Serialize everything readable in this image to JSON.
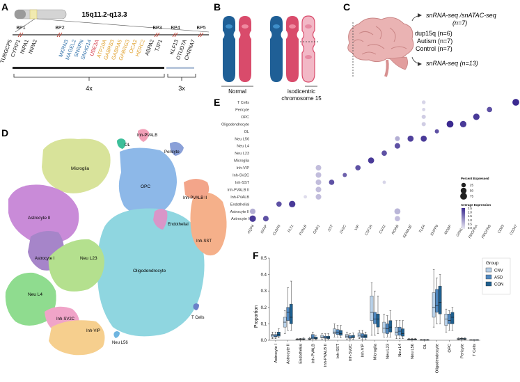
{
  "panels": {
    "a": "A",
    "b": "B",
    "c": "C",
    "d": "D",
    "e": "E",
    "f": "F"
  },
  "panel_a": {
    "title": "15q11.2-q13.3",
    "breakpoints": [
      "BP1",
      "BP2",
      "BP3",
      "BP4",
      "BP5"
    ],
    "genes_black_1": [
      "TUBGCP5",
      "CYFIP1",
      "NIPA1",
      "NIPA2"
    ],
    "genes_blue": [
      "MKRN3",
      "MAGEL2",
      "SNRPN",
      "SNHG14"
    ],
    "genes_red": [
      "UBE3A"
    ],
    "genes_orange": [
      "ATP10A",
      "GABRB3",
      "GABRA5",
      "GABRG3",
      "OCA2",
      "HERC2"
    ],
    "genes_black_2": [
      "ABPA2",
      "TJP1"
    ],
    "genes_black_3": [
      "KLF13",
      "OTUD7A",
      "CHRNA7"
    ],
    "copy_4x": "4x",
    "copy_3x": "3x",
    "colors": {
      "blue": "#2d6fa8",
      "red": "#d6394a",
      "orange": "#e0a12e",
      "gray": "#b9c7dc"
    }
  },
  "panel_b": {
    "normal": "Normal",
    "isodicentric_1": "isodicentric",
    "isodicentric_2": "chromosome 15",
    "colors": {
      "blue": "#1f5f96",
      "pink": "#d94b6b"
    }
  },
  "panel_c": {
    "top_label": "snRNA-seq /snATAC-seq",
    "top_n": "(n=7)",
    "groups": [
      "dup15q (n=6)",
      "Autism (n=7)",
      "Control (n=7)"
    ],
    "bottom_label": "snRNA-seq (n=13)"
  },
  "panel_d": {
    "clusters": [
      {
        "name": "OL",
        "color": "#3cbf9a"
      },
      {
        "name": "Inh-PVALB",
        "color": "#f2a0b8"
      },
      {
        "name": "Pericyte",
        "color": "#8aa0d8"
      },
      {
        "name": "Microglia",
        "color": "#d8e39a"
      },
      {
        "name": "OPC",
        "color": "#8db8e8"
      },
      {
        "name": "Inh-PVALB II",
        "color": "#f3a58a"
      },
      {
        "name": "Astrocyte II",
        "color": "#c98bd8"
      },
      {
        "name": "Endothelial",
        "color": "#d996c8"
      },
      {
        "name": "Inh-SST",
        "color": "#f5b08a"
      },
      {
        "name": "Astrocyte I",
        "color": "#a685c9"
      },
      {
        "name": "Neu L23",
        "color": "#b4e08e"
      },
      {
        "name": "Oligodendrocyte",
        "color": "#8fd6e0"
      },
      {
        "name": "Neu L4",
        "color": "#8fdc8f"
      },
      {
        "name": "T Cells",
        "color": "#6a80c8"
      },
      {
        "name": "Inh-SV2C",
        "color": "#f0a4c8"
      },
      {
        "name": "Inh-VIP",
        "color": "#f6cf8e"
      },
      {
        "name": "Neu L56",
        "color": "#6fb5e0"
      }
    ]
  },
  "chart_data": [
    {
      "type": "dotplot",
      "panel": "E",
      "title": "",
      "genes": [
        "AQP4",
        "GFAP",
        "CLDN5",
        "FLT1",
        "PVALB",
        "GAD1",
        "SST",
        "SV2C",
        "VIP",
        "CSF1R",
        "CUX2",
        "RORB",
        "SEMA3E",
        "TLE4",
        "ENPP6",
        "MOBP",
        "OPALIN",
        "PDGFRA",
        "PDGFRB",
        "CD83",
        "CD247"
      ],
      "cell_types": [
        "T Cells",
        "Pericyte",
        "OPC",
        "Oligodendrocyte",
        "OL",
        "Neu L56",
        "Neu L4",
        "Neu L23",
        "Microglia",
        "Inh-VIP",
        "Inh-SV2C",
        "Inh-SST",
        "Inh-PVALB II",
        "Inh-PVALB",
        "Endothelial",
        "Astrocyte II",
        "Astrocyte I"
      ],
      "dots": [
        {
          "cell": "T Cells",
          "gene": "CD247",
          "pct": 75,
          "expr": 2.5
        },
        {
          "cell": "T Cells",
          "gene": "TLE4",
          "pct": 15,
          "expr": 0.3
        },
        {
          "cell": "Pericyte",
          "gene": "PDGFRB",
          "pct": 40,
          "expr": 2.0
        },
        {
          "cell": "Pericyte",
          "gene": "TLE4",
          "pct": 10,
          "expr": 0.3
        },
        {
          "cell": "OPC",
          "gene": "PDGFRA",
          "pct": 65,
          "expr": 2.3
        },
        {
          "cell": "OPC",
          "gene": "TLE4",
          "pct": 20,
          "expr": 0.4
        },
        {
          "cell": "Oligodendrocyte",
          "gene": "MOBP",
          "pct": 75,
          "expr": 2.5
        },
        {
          "cell": "Oligodendrocyte",
          "gene": "OPALIN",
          "pct": 65,
          "expr": 2.3
        },
        {
          "cell": "Oligodendrocyte",
          "gene": "TLE4",
          "pct": 20,
          "expr": 0.4
        },
        {
          "cell": "OL",
          "gene": "ENPP6",
          "pct": 20,
          "expr": 2.0
        },
        {
          "cell": "Neu L56",
          "gene": "SEMA3E",
          "pct": 55,
          "expr": 2.2
        },
        {
          "cell": "Neu L56",
          "gene": "TLE4",
          "pct": 55,
          "expr": 2.3
        },
        {
          "cell": "Neu L56",
          "gene": "RORB",
          "pct": 30,
          "expr": 0.8
        },
        {
          "cell": "Neu L4",
          "gene": "RORB",
          "pct": 45,
          "expr": 2.0
        },
        {
          "cell": "Neu L23",
          "gene": "CUX2",
          "pct": 40,
          "expr": 2.0
        },
        {
          "cell": "Microglia",
          "gene": "CSF1R",
          "pct": 55,
          "expr": 2.3
        },
        {
          "cell": "Inh-VIP",
          "gene": "VIP",
          "pct": 40,
          "expr": 2.0
        },
        {
          "cell": "Inh-VIP",
          "gene": "GAD1",
          "pct": 45,
          "expr": 0.6
        },
        {
          "cell": "Inh-SV2C",
          "gene": "SV2C",
          "pct": 20,
          "expr": 1.8
        },
        {
          "cell": "Inh-SV2C",
          "gene": "GAD1",
          "pct": 45,
          "expr": 0.6
        },
        {
          "cell": "Inh-SST",
          "gene": "SST",
          "pct": 40,
          "expr": 2.0
        },
        {
          "cell": "Inh-SST",
          "gene": "GAD1",
          "pct": 45,
          "expr": 0.6
        },
        {
          "cell": "Inh-SST",
          "gene": "CUX2",
          "pct": 10,
          "expr": 0.3
        },
        {
          "cell": "Inh-PVALB II",
          "gene": "GAD1",
          "pct": 45,
          "expr": 0.6
        },
        {
          "cell": "Inh-PVALB",
          "gene": "PVALB",
          "pct": 10,
          "expr": 0.2
        },
        {
          "cell": "Inh-PVALB",
          "gene": "GAD1",
          "pct": 45,
          "expr": 0.6
        },
        {
          "cell": "Endothelial",
          "gene": "CLDN5",
          "pct": 40,
          "expr": 2.0
        },
        {
          "cell": "Endothelial",
          "gene": "FLT1",
          "pct": 65,
          "expr": 2.3
        },
        {
          "cell": "Astrocyte II",
          "gene": "AQP4",
          "pct": 45,
          "expr": 0.8
        },
        {
          "cell": "Astrocyte II",
          "gene": "RORB",
          "pct": 55,
          "expr": 0.7
        },
        {
          "cell": "Astrocyte I",
          "gene": "AQP4",
          "pct": 65,
          "expr": 2.3
        },
        {
          "cell": "Astrocyte I",
          "gene": "GFAP",
          "pct": 45,
          "expr": 2.0
        },
        {
          "cell": "Astrocyte I",
          "gene": "RORB",
          "pct": 40,
          "expr": 0.6
        }
      ],
      "legend_size_title": "Percent Expressed",
      "legend_size_values": [
        25,
        50,
        75
      ],
      "legend_size_labels": [
        "25",
        "50",
        "75"
      ],
      "legend_color_title": "Average Expression",
      "legend_color_ticks": [
        "2.5",
        "2.0",
        "1.5",
        "1.0",
        "0.5",
        "0.0"
      ],
      "color_range": [
        0,
        2.5
      ]
    },
    {
      "type": "box",
      "panel": "F",
      "ylabel": "Proportion",
      "ylim": [
        0,
        0.5
      ],
      "yticks": [
        0.0,
        0.1,
        0.2,
        0.3,
        0.4,
        0.5
      ],
      "ytick_labels": [
        "0.0",
        "0.1",
        "0.2",
        "0.3",
        "0.4",
        "0.5"
      ],
      "categories": [
        "Astrocyte I",
        "Astrocyte II",
        "Endothelial",
        "Inh-PVALB",
        "Inh-PVALB II",
        "Inh-SST",
        "Inh-SV2C",
        "Inh-VIP",
        "Microglia",
        "Neu L23",
        "Neu L4",
        "Neu L56",
        "OL",
        "Oligodendrocyte",
        "OPC",
        "Pericyte",
        "T Cells"
      ],
      "legend_title": "Group",
      "series": [
        {
          "name": "CNV",
          "color": "#b7d0e8",
          "boxes": [
            [
              0.01,
              0.02,
              0.03,
              0.035,
              0.05
            ],
            [
              0.04,
              0.08,
              0.11,
              0.14,
              0.18
            ],
            [
              0.002,
              0.004,
              0.006,
              0.008,
              0.01
            ],
            [
              0.002,
              0.005,
              0.008,
              0.012,
              0.02
            ],
            [
              0.005,
              0.015,
              0.02,
              0.03,
              0.04
            ],
            [
              0.02,
              0.04,
              0.05,
              0.07,
              0.1
            ],
            [
              0.005,
              0.015,
              0.025,
              0.035,
              0.05
            ],
            [
              0.01,
              0.02,
              0.03,
              0.045,
              0.06
            ],
            [
              0.03,
              0.12,
              0.17,
              0.27,
              0.35
            ],
            [
              0.02,
              0.045,
              0.075,
              0.11,
              0.16
            ],
            [
              0.01,
              0.03,
              0.05,
              0.08,
              0.12
            ],
            [
              0.002,
              0.004,
              0.006,
              0.008,
              0.012
            ],
            [
              0.0,
              0.001,
              0.002,
              0.003,
              0.005
            ],
            [
              0.08,
              0.14,
              0.2,
              0.29,
              0.43
            ],
            [
              0.05,
              0.09,
              0.13,
              0.16,
              0.19
            ],
            [
              0.002,
              0.005,
              0.008,
              0.011,
              0.015
            ],
            [
              0.0,
              0.001,
              0.002,
              0.003,
              0.004
            ]
          ]
        },
        {
          "name": "ASD",
          "color": "#4f88c0",
          "boxes": [
            [
              0.01,
              0.02,
              0.025,
              0.035,
              0.05
            ],
            [
              0.06,
              0.12,
              0.17,
              0.2,
              0.32
            ],
            [
              0.003,
              0.005,
              0.007,
              0.009,
              0.012
            ],
            [
              0.005,
              0.01,
              0.02,
              0.035,
              0.05
            ],
            [
              0.004,
              0.012,
              0.018,
              0.025,
              0.04
            ],
            [
              0.02,
              0.035,
              0.05,
              0.065,
              0.09
            ],
            [
              0.005,
              0.012,
              0.02,
              0.028,
              0.04
            ],
            [
              0.005,
              0.015,
              0.025,
              0.04,
              0.06
            ],
            [
              0.03,
              0.1,
              0.13,
              0.17,
              0.3
            ],
            [
              0.02,
              0.04,
              0.07,
              0.1,
              0.15
            ],
            [
              0.01,
              0.03,
              0.055,
              0.08,
              0.12
            ],
            [
              0.002,
              0.004,
              0.006,
              0.008,
              0.012
            ],
            [
              0.0,
              0.001,
              0.002,
              0.003,
              0.005
            ],
            [
              0.1,
              0.17,
              0.21,
              0.31,
              0.38
            ],
            [
              0.06,
              0.1,
              0.12,
              0.16,
              0.18
            ],
            [
              0.002,
              0.006,
              0.009,
              0.012,
              0.016
            ],
            [
              0.0,
              0.001,
              0.002,
              0.003,
              0.004
            ]
          ]
        },
        {
          "name": "CON",
          "color": "#1e5f8f",
          "boxes": [
            [
              0.015,
              0.025,
              0.035,
              0.05,
              0.07
            ],
            [
              0.06,
              0.1,
              0.14,
              0.22,
              0.36
            ],
            [
              0.003,
              0.005,
              0.007,
              0.01,
              0.014
            ],
            [
              0.003,
              0.008,
              0.012,
              0.02,
              0.03
            ],
            [
              0.004,
              0.01,
              0.015,
              0.025,
              0.04
            ],
            [
              0.015,
              0.03,
              0.04,
              0.06,
              0.09
            ],
            [
              0.005,
              0.015,
              0.02,
              0.03,
              0.045
            ],
            [
              0.005,
              0.015,
              0.025,
              0.035,
              0.05
            ],
            [
              0.04,
              0.08,
              0.13,
              0.16,
              0.27
            ],
            [
              0.02,
              0.05,
              0.08,
              0.12,
              0.18
            ],
            [
              0.01,
              0.025,
              0.04,
              0.07,
              0.12
            ],
            [
              0.002,
              0.004,
              0.006,
              0.008,
              0.012
            ],
            [
              0.0,
              0.001,
              0.002,
              0.003,
              0.005
            ],
            [
              0.1,
              0.16,
              0.23,
              0.33,
              0.4
            ],
            [
              0.06,
              0.1,
              0.14,
              0.17,
              0.2
            ],
            [
              0.002,
              0.005,
              0.008,
              0.011,
              0.015
            ],
            [
              0.0,
              0.001,
              0.002,
              0.003,
              0.004
            ]
          ]
        }
      ]
    }
  ]
}
